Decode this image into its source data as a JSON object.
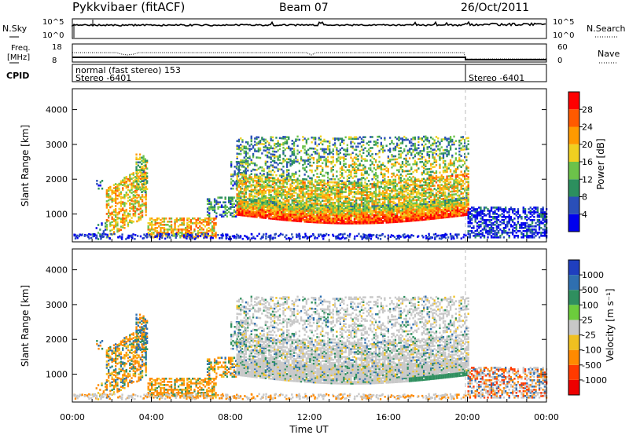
{
  "header": {
    "radar": "Pykkvibaer (fitACF)",
    "beam": "Beam 07",
    "date": "26/Oct/2011"
  },
  "top_panels": {
    "nsky_label": "N.Sky",
    "nsky_ticks": [
      "10^5",
      "10^0"
    ],
    "nsearch_label": "N.Search",
    "nsearch_ticks": [
      "10^5",
      "10^0"
    ],
    "freq_label_line1": "Freq.",
    "freq_label_line2": "[MHz]",
    "freq_ticks": [
      "18",
      "8"
    ],
    "nave_label": "Nave",
    "nave_ticks": [
      "60",
      "0"
    ],
    "cpid_label": "CPID",
    "cpid_text_1": "normal (fast stereo) 153",
    "cpid_text_2": "Stereo -6401",
    "cpid_text_3": "Stereo -6401"
  },
  "chart_data": [
    {
      "type": "heatmap",
      "name": "power",
      "ylabel": "Slant Range [km]",
      "xlabel": "",
      "ylim": [
        200,
        4600
      ],
      "yticks": [
        1000,
        2000,
        3000,
        4000
      ],
      "xlim": [
        "00:00",
        "24:00"
      ],
      "colorbar_label": "Power [dB]",
      "colorbar_ticks": [
        "4",
        "8",
        "12",
        "16",
        "20",
        "24",
        "28"
      ],
      "colorbar_colors": [
        "#0000ee",
        "#2a4fb8",
        "#2c8f5e",
        "#6cc24a",
        "#f0d020",
        "#ff9a00",
        "#ff5a00",
        "#ff0000"
      ]
    },
    {
      "type": "heatmap",
      "name": "velocity",
      "ylabel": "Slant Range [km]",
      "xlabel": "Time UT",
      "ylim": [
        200,
        4600
      ],
      "yticks": [
        1000,
        2000,
        3000,
        4000
      ],
      "xlim": [
        "00:00",
        "24:00"
      ],
      "xticks": [
        "00:00",
        "04:00",
        "08:00",
        "12:00",
        "16:00",
        "20:00",
        "00:00"
      ],
      "colorbar_label": "Velocity [m s⁻¹]",
      "colorbar_ticks": [
        "1000",
        "500",
        "100",
        "25",
        "-25",
        "-100",
        "-500",
        "-1000"
      ],
      "colorbar_colors": [
        "#1f3fbf",
        "#2f6fb0",
        "#2f8f5f",
        "#6ccc3c",
        "#c8c8c8",
        "#f0c020",
        "#ff8a00",
        "#ff3a00",
        "#ee0000"
      ]
    }
  ]
}
